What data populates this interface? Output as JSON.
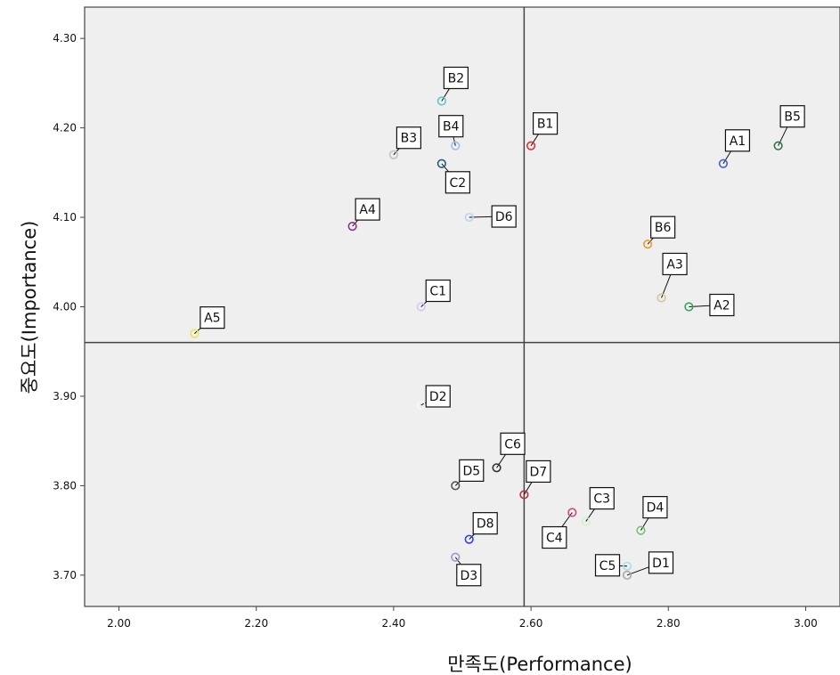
{
  "chart_data": {
    "type": "scatter",
    "xlabel": "만족도(Performance)",
    "ylabel": "중요도(Importance)",
    "xlim": [
      1.95,
      3.05
    ],
    "ylim": [
      3.665,
      4.335
    ],
    "x_ticks": [
      "2.00",
      "2.20",
      "2.40",
      "2.60",
      "2.80",
      "3.00"
    ],
    "y_ticks": [
      "3.70",
      "3.80",
      "3.90",
      "4.00",
      "4.10",
      "4.20",
      "4.30"
    ],
    "reference_lines": {
      "x": 2.59,
      "y": 3.96
    },
    "background": "#efefef",
    "grid": false,
    "points": [
      {
        "label": "A1",
        "x": 2.88,
        "y": 4.16,
        "color": "#4a60c8"
      },
      {
        "label": "A2",
        "x": 2.83,
        "y": 4.0,
        "color": "#32a852"
      },
      {
        "label": "A3",
        "x": 2.79,
        "y": 4.01,
        "color": "#d6c49a"
      },
      {
        "label": "A4",
        "x": 2.34,
        "y": 4.09,
        "color": "#8e2f8e"
      },
      {
        "label": "A5",
        "x": 2.11,
        "y": 3.97,
        "color": "#e8e64a"
      },
      {
        "label": "B1",
        "x": 2.6,
        "y": 4.18,
        "color": "#e03030"
      },
      {
        "label": "B2",
        "x": 2.47,
        "y": 4.23,
        "color": "#5fc6c6"
      },
      {
        "label": "B3",
        "x": 2.4,
        "y": 4.17,
        "color": "#c2c2c2"
      },
      {
        "label": "B4",
        "x": 2.49,
        "y": 4.18,
        "color": "#9fc0e8"
      },
      {
        "label": "B5",
        "x": 2.96,
        "y": 4.18,
        "color": "#2d7a4a"
      },
      {
        "label": "B6",
        "x": 2.77,
        "y": 4.07,
        "color": "#f0962a"
      },
      {
        "label": "C1",
        "x": 2.44,
        "y": 4.0,
        "color": "#d6c8f0"
      },
      {
        "label": "C2",
        "x": 2.47,
        "y": 4.16,
        "color": "#2b5a7c"
      },
      {
        "label": "C3",
        "x": 2.68,
        "y": 3.76,
        "color": "#d6f0c2"
      },
      {
        "label": "C4",
        "x": 2.66,
        "y": 3.77,
        "color": "#d4467c"
      },
      {
        "label": "C5",
        "x": 2.74,
        "y": 3.71,
        "color": "#a8e0e8"
      },
      {
        "label": "C6",
        "x": 2.55,
        "y": 3.82,
        "color": "#333333"
      },
      {
        "label": "D1",
        "x": 2.74,
        "y": 3.7,
        "color": "#aaaaaa"
      },
      {
        "label": "D2",
        "x": 2.44,
        "y": 3.89,
        "color": "#f7f7f7"
      },
      {
        "label": "D3",
        "x": 2.49,
        "y": 3.72,
        "color": "#9a9ac8"
      },
      {
        "label": "D4",
        "x": 2.76,
        "y": 3.75,
        "color": "#6cc86c"
      },
      {
        "label": "D5",
        "x": 2.49,
        "y": 3.8,
        "color": "#555555"
      },
      {
        "label": "D6",
        "x": 2.51,
        "y": 4.1,
        "color": "#bcd4f0"
      },
      {
        "label": "D7",
        "x": 2.59,
        "y": 3.79,
        "color": "#c0303a"
      },
      {
        "label": "D8",
        "x": 2.51,
        "y": 3.74,
        "color": "#3040e0"
      }
    ]
  }
}
